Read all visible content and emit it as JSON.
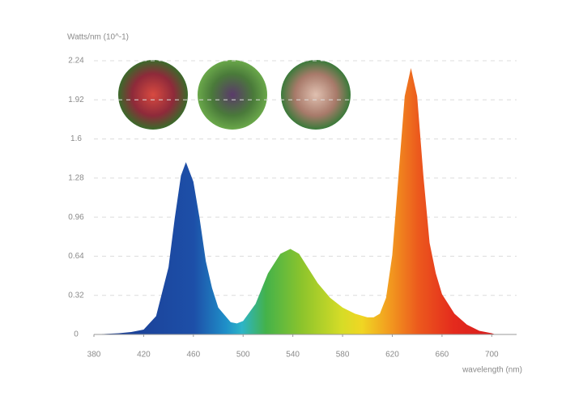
{
  "chart_data": {
    "type": "area",
    "y_label": "Watts/nm (10^-1)",
    "x_label": "wavelength (nm)",
    "x": [
      380,
      390,
      400,
      410,
      420,
      430,
      440,
      445,
      450,
      454,
      460,
      465,
      470,
      475,
      480,
      490,
      495,
      500,
      510,
      520,
      530,
      538,
      545,
      550,
      560,
      570,
      580,
      590,
      600,
      605,
      610,
      615,
      620,
      625,
      630,
      635,
      640,
      645,
      650,
      655,
      660,
      670,
      680,
      690,
      700,
      703
    ],
    "values": [
      0,
      0.005,
      0.01,
      0.02,
      0.04,
      0.15,
      0.55,
      0.95,
      1.3,
      1.41,
      1.25,
      0.95,
      0.6,
      0.38,
      0.22,
      0.1,
      0.09,
      0.11,
      0.25,
      0.5,
      0.66,
      0.7,
      0.66,
      0.58,
      0.42,
      0.3,
      0.22,
      0.17,
      0.14,
      0.14,
      0.17,
      0.3,
      0.65,
      1.3,
      1.95,
      2.18,
      1.95,
      1.3,
      0.75,
      0.5,
      0.33,
      0.17,
      0.08,
      0.03,
      0.01,
      0
    ],
    "xlim": [
      380,
      720
    ],
    "xticks": [
      380,
      420,
      460,
      500,
      540,
      580,
      620,
      660,
      700
    ],
    "ylim": [
      0,
      2.24
    ],
    "yticks": [
      0,
      0.32,
      0.64,
      0.96,
      1.28,
      1.6,
      1.92,
      2.24
    ],
    "grid": true
  }
}
